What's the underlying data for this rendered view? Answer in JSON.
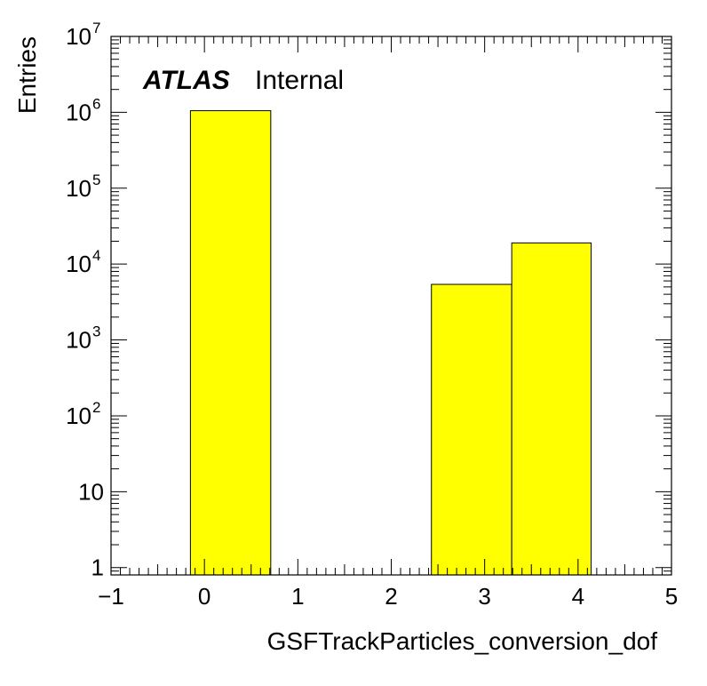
{
  "chart_data": {
    "type": "bar",
    "style": "histogram",
    "x_label": "GSFTrackParticles_conversion_dof",
    "y_label": "Entries",
    "x_range": [
      -1,
      5
    ],
    "y_range": [
      0.8,
      10000000
    ],
    "y_scale": "log",
    "x_ticks": [
      "−1",
      "0",
      "1",
      "2",
      "3",
      "4",
      "5"
    ],
    "x_tick_values": [
      -1,
      0,
      1,
      2,
      3,
      4,
      5
    ],
    "y_ticks": [
      {
        "value": 1,
        "base": "1",
        "exp": ""
      },
      {
        "value": 10,
        "base": "10",
        "exp": ""
      },
      {
        "value": 100,
        "base": "10",
        "exp": "2"
      },
      {
        "value": 1000,
        "base": "10",
        "exp": "3"
      },
      {
        "value": 10000,
        "base": "10",
        "exp": "4"
      },
      {
        "value": 100000,
        "base": "10",
        "exp": "5"
      },
      {
        "value": 1000000,
        "base": "10",
        "exp": "6"
      },
      {
        "value": 10000000,
        "base": "10",
        "exp": "7"
      }
    ],
    "bins": [
      {
        "x_low": -0.15,
        "x_high": 0.71,
        "value": 1050000
      },
      {
        "x_low": 2.43,
        "x_high": 3.29,
        "value": 5400
      },
      {
        "x_low": 3.29,
        "x_high": 4.14,
        "value": 19000
      }
    ],
    "fill_color": "#ffff00",
    "line_color": "#000000",
    "grid": false,
    "annotation": {
      "bold": "ATLAS",
      "normal": "Internal"
    }
  }
}
